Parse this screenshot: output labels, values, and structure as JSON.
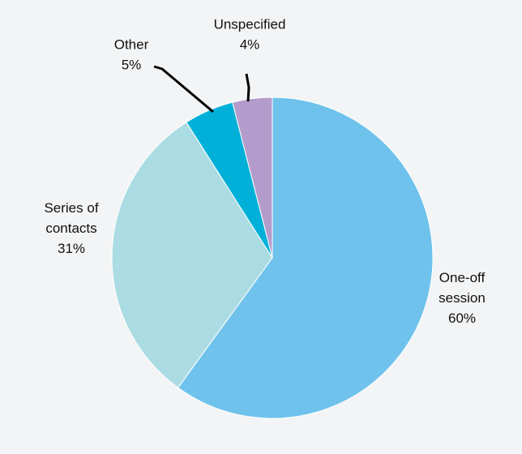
{
  "chart_data": {
    "type": "pie",
    "slices": [
      {
        "key": "one-off",
        "lines": [
          "One-off",
          "session"
        ],
        "value": 60,
        "value_label": "60%",
        "color": "#6ec2ec"
      },
      {
        "key": "series",
        "lines": [
          "Series of",
          "contacts"
        ],
        "value": 31,
        "value_label": "31%",
        "color": "#acdce3"
      },
      {
        "key": "other",
        "lines": [
          "Other"
        ],
        "value": 5,
        "value_label": "5%",
        "color": "#00b0d8"
      },
      {
        "key": "unspecified",
        "lines": [
          "Unspecified"
        ],
        "value": 4,
        "value_label": "4%",
        "color": "#b39ccb"
      }
    ],
    "start_angle": "12 o'clock",
    "direction": "clockwise"
  }
}
